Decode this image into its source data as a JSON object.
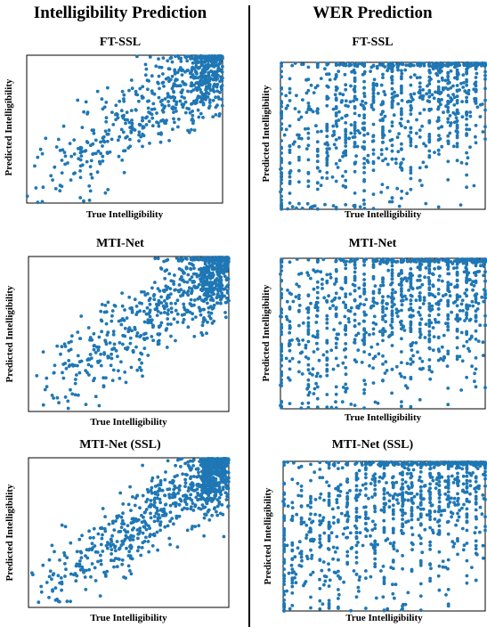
{
  "column_titles": [
    "Intelligibility Prediction",
    "WER Prediction"
  ],
  "marker_color": "#1f77b4",
  "chart_data": [
    {
      "type": "scatter",
      "title": "FT-SSL",
      "xlabel": "True Intelligibility",
      "ylabel": "Predicted Intelligibility",
      "task": "intelligibility",
      "spread": 0.16,
      "seed": 11,
      "n": 720
    },
    {
      "type": "scatter",
      "title": "FT-SSL",
      "xlabel": "True Intelligibility",
      "ylabel": "Predicted Intelligibility",
      "task": "wer",
      "spread": 0.3,
      "seed": 23,
      "n": 1100
    },
    {
      "type": "scatter",
      "title": "MTI-Net",
      "xlabel": "True Intelligibility",
      "ylabel": "Predicted Intelligibility",
      "task": "intelligibility",
      "spread": 0.14,
      "seed": 37,
      "n": 850
    },
    {
      "type": "scatter",
      "title": "MTI-Net",
      "xlabel": "True Intelligibility",
      "ylabel": "Predicted Intelligibility",
      "task": "wer",
      "spread": 0.3,
      "seed": 41,
      "n": 1150
    },
    {
      "type": "scatter",
      "title": "MTI-Net (SSL)",
      "xlabel": "True Intelligibility",
      "ylabel": "Predicted Intelligibility",
      "task": "intelligibility",
      "spread": 0.13,
      "seed": 53,
      "n": 950
    },
    {
      "type": "scatter",
      "title": "MTI-Net (SSL)",
      "xlabel": "True Intelligibility",
      "ylabel": "Predicted Intelligibility",
      "task": "wer",
      "spread": 0.3,
      "seed": 67,
      "n": 1150
    }
  ]
}
